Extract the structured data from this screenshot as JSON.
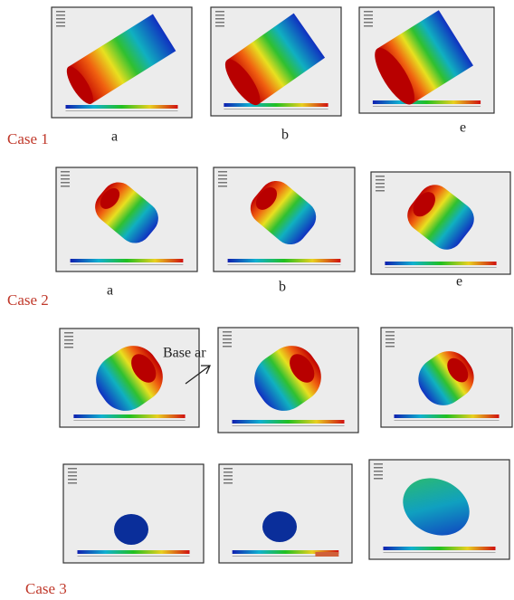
{
  "case_labels": [
    "Case 1",
    "Case 2",
    "Case 3"
  ],
  "panel_labels": [
    [
      "a",
      "b",
      "e"
    ],
    [
      "a",
      "b",
      "e"
    ]
  ],
  "annotation": "Base ar"
}
